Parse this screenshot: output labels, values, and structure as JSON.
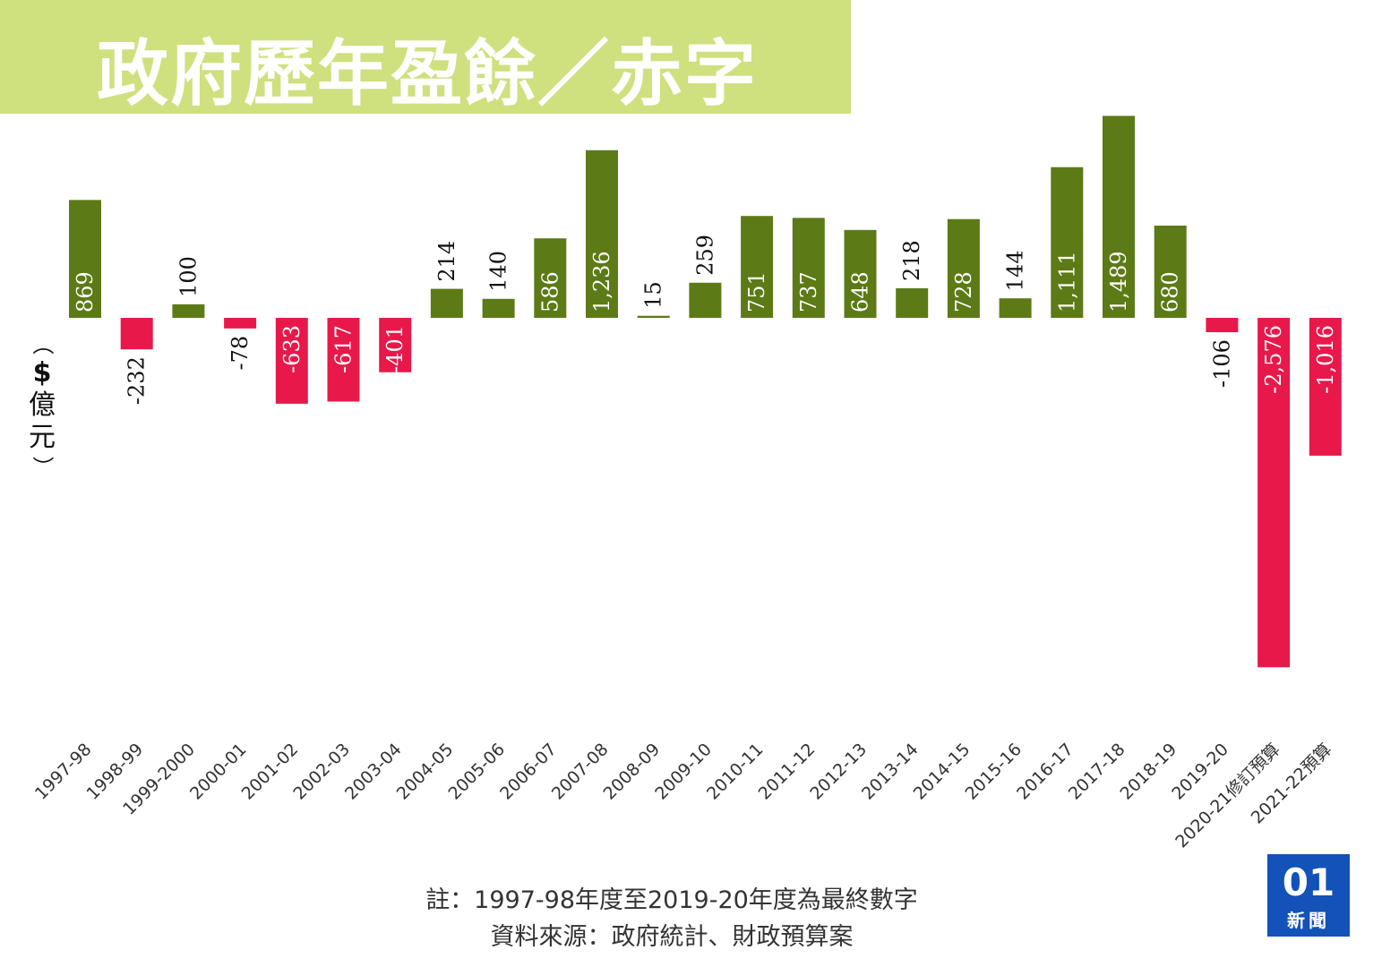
{
  "title": "政府歷年盈餘／赤字",
  "colors": {
    "banner": "#cfe07e",
    "positive": "#5c7a16",
    "negative": "#e8194a"
  },
  "ylabel": {
    "open": "（",
    "currency": "$",
    "unit1": "億",
    "unit2": "元",
    "close": "）"
  },
  "footnote": {
    "line1": "註：1997-98年度至2019-20年度為最終數字",
    "line2": "資料來源：政府統計、財政預算案"
  },
  "logo": {
    "mark": "01",
    "text": "新聞"
  },
  "chart_data": {
    "type": "bar",
    "ylabel": "$億元",
    "categories": [
      "1997-98",
      "1998-99",
      "1999-2000",
      "2000-01",
      "2001-02",
      "2002-03",
      "2003-04",
      "2004-05",
      "2005-06",
      "2006-07",
      "2007-08",
      "2008-09",
      "2009-10",
      "2010-11",
      "2011-12",
      "2012-13",
      "2013-14",
      "2014-15",
      "2015-16",
      "2016-17",
      "2017-18",
      "2018-19",
      "2019-20",
      "2020-21修訂預算",
      "2021-22預算"
    ],
    "values": [
      869,
      -232,
      100,
      -78,
      -633,
      -617,
      -401,
      214,
      140,
      586,
      1236,
      15,
      259,
      751,
      737,
      648,
      218,
      728,
      144,
      1111,
      1489,
      680,
      -106,
      -2576,
      -1016
    ],
    "labels": [
      "869",
      "-232",
      "100",
      "-78",
      "-633",
      "-617",
      "-401",
      "214",
      "140",
      "586",
      "1,236",
      "15",
      "259",
      "751",
      "737",
      "648",
      "218",
      "728",
      "144",
      "1,111",
      "1,489",
      "680",
      "-106",
      "-2,576",
      "-1,016"
    ],
    "legend": "none",
    "grid": false
  }
}
